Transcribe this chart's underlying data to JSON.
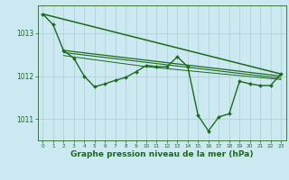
{
  "background_color": "#cce8f0",
  "grid_color": "#aaccd8",
  "line_color": "#1a6b1a",
  "xlabel": "Graphe pression niveau de la mer (hPa)",
  "xlabel_fontsize": 6.5,
  "tick_color": "#1a6b1a",
  "xlim": [
    -0.5,
    23.5
  ],
  "ylim": [
    1010.5,
    1013.65
  ],
  "yticks": [
    1011,
    1012,
    1013
  ],
  "xticks": [
    0,
    1,
    2,
    3,
    4,
    5,
    6,
    7,
    8,
    9,
    10,
    11,
    12,
    13,
    14,
    15,
    16,
    17,
    18,
    19,
    20,
    21,
    22,
    23
  ],
  "main_series": {
    "x": [
      0,
      1,
      2,
      3,
      4,
      5,
      6,
      7,
      8,
      9,
      10,
      11,
      12,
      13,
      14,
      15,
      16,
      17,
      18,
      19,
      20,
      21,
      22,
      23
    ],
    "y": [
      1013.45,
      1013.2,
      1012.6,
      1012.42,
      1012.0,
      1011.75,
      1011.82,
      1011.9,
      1011.97,
      1012.1,
      1012.25,
      1012.22,
      1012.22,
      1012.45,
      1012.22,
      1011.08,
      1010.72,
      1011.05,
      1011.12,
      1011.88,
      1011.82,
      1011.78,
      1011.78,
      1012.05
    ],
    "marker": "D",
    "markersize": 2.0,
    "linewidth": 1.0
  },
  "trend_lines": [
    {
      "x": [
        0,
        23
      ],
      "y": [
        1013.45,
        1012.05
      ],
      "linewidth": 1.1
    },
    {
      "x": [
        2,
        23
      ],
      "y": [
        1012.6,
        1012.0
      ],
      "linewidth": 0.9
    },
    {
      "x": [
        2,
        23
      ],
      "y": [
        1012.55,
        1011.95
      ],
      "linewidth": 0.8
    },
    {
      "x": [
        2,
        10,
        23
      ],
      "y": [
        1012.48,
        1012.22,
        1011.92
      ],
      "linewidth": 0.7
    }
  ]
}
